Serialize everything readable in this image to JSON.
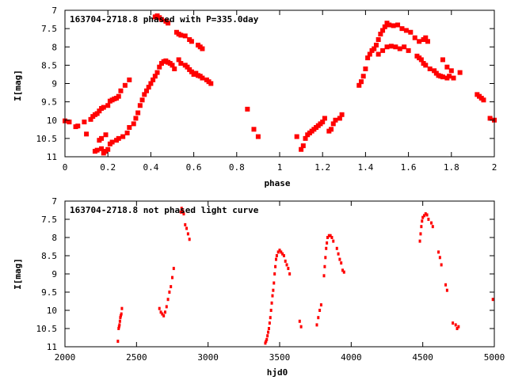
{
  "chart_data": [
    {
      "type": "scatter",
      "title": "163704-2718.8 phased with P=335.0day",
      "xlabel": "phase",
      "ylabel": "I[mag]",
      "xlim": [
        0,
        2
      ],
      "ylim": [
        11,
        7
      ],
      "y_inverted": true,
      "xticks": [
        "0",
        "0.2",
        "0.4",
        "0.6",
        "0.8",
        "1",
        "1.2",
        "1.4",
        "1.6",
        "1.8",
        "2"
      ],
      "yticks": [
        "7",
        "7.5",
        "8",
        "8.5",
        "9",
        "9.5",
        "10",
        "10.5",
        "11"
      ],
      "grid": false,
      "marker_color": "#ff0000",
      "marker": "filled-square",
      "points": [
        [
          0.0,
          10.02
        ],
        [
          0.02,
          10.05
        ],
        [
          0.05,
          10.18
        ],
        [
          0.06,
          10.16
        ],
        [
          0.09,
          10.05
        ],
        [
          0.1,
          10.38
        ],
        [
          0.12,
          9.98
        ],
        [
          0.13,
          9.9
        ],
        [
          0.14,
          9.85
        ],
        [
          0.15,
          9.82
        ],
        [
          0.16,
          9.75
        ],
        [
          0.17,
          9.68
        ],
        [
          0.18,
          9.65
        ],
        [
          0.2,
          9.6
        ],
        [
          0.21,
          9.48
        ],
        [
          0.22,
          9.45
        ],
        [
          0.23,
          9.42
        ],
        [
          0.24,
          9.4
        ],
        [
          0.25,
          9.35
        ],
        [
          0.26,
          9.2
        ],
        [
          0.28,
          9.05
        ],
        [
          0.3,
          8.9
        ],
        [
          0.14,
          10.85
        ],
        [
          0.15,
          10.82
        ],
        [
          0.17,
          10.78
        ],
        [
          0.18,
          10.9
        ],
        [
          0.19,
          10.85
        ],
        [
          0.2,
          10.8
        ],
        [
          0.16,
          10.55
        ],
        [
          0.17,
          10.5
        ],
        [
          0.19,
          10.4
        ],
        [
          0.21,
          10.65
        ],
        [
          0.22,
          10.6
        ],
        [
          0.24,
          10.55
        ],
        [
          0.25,
          10.5
        ],
        [
          0.27,
          10.45
        ],
        [
          0.29,
          10.35
        ],
        [
          0.3,
          10.2
        ],
        [
          0.32,
          10.1
        ],
        [
          0.33,
          9.95
        ],
        [
          0.34,
          9.8
        ],
        [
          0.35,
          9.6
        ],
        [
          0.36,
          9.45
        ],
        [
          0.37,
          9.3
        ],
        [
          0.38,
          9.2
        ],
        [
          0.39,
          9.1
        ],
        [
          0.4,
          9.0
        ],
        [
          0.41,
          8.9
        ],
        [
          0.42,
          8.8
        ],
        [
          0.43,
          8.7
        ],
        [
          0.44,
          8.55
        ],
        [
          0.45,
          8.45
        ],
        [
          0.46,
          8.4
        ],
        [
          0.47,
          8.38
        ],
        [
          0.48,
          8.42
        ],
        [
          0.49,
          8.45
        ],
        [
          0.5,
          8.5
        ],
        [
          0.51,
          8.6
        ],
        [
          0.53,
          8.35
        ],
        [
          0.54,
          8.45
        ],
        [
          0.56,
          8.5
        ],
        [
          0.57,
          8.55
        ],
        [
          0.58,
          8.62
        ],
        [
          0.59,
          8.68
        ],
        [
          0.6,
          8.75
        ],
        [
          0.61,
          8.72
        ],
        [
          0.62,
          8.78
        ],
        [
          0.63,
          8.8
        ],
        [
          0.64,
          8.85
        ],
        [
          0.66,
          8.9
        ],
        [
          0.67,
          8.95
        ],
        [
          0.68,
          9.0
        ],
        [
          0.42,
          7.18
        ],
        [
          0.43,
          7.15
        ],
        [
          0.44,
          7.2
        ],
        [
          0.45,
          7.25
        ],
        [
          0.47,
          7.3
        ],
        [
          0.48,
          7.35
        ],
        [
          0.52,
          7.6
        ],
        [
          0.53,
          7.65
        ],
        [
          0.54,
          7.68
        ],
        [
          0.56,
          7.7
        ],
        [
          0.58,
          7.8
        ],
        [
          0.59,
          7.85
        ],
        [
          0.62,
          7.95
        ],
        [
          0.63,
          8.0
        ],
        [
          0.64,
          8.05
        ],
        [
          0.85,
          9.7
        ],
        [
          0.88,
          10.25
        ],
        [
          0.9,
          10.45
        ],
        [
          1.08,
          10.45
        ],
        [
          1.1,
          10.8
        ],
        [
          1.11,
          10.7
        ],
        [
          1.12,
          10.5
        ],
        [
          1.13,
          10.4
        ],
        [
          1.14,
          10.35
        ],
        [
          1.15,
          10.3
        ],
        [
          1.16,
          10.25
        ],
        [
          1.17,
          10.2
        ],
        [
          1.18,
          10.15
        ],
        [
          1.19,
          10.1
        ],
        [
          1.2,
          10.05
        ],
        [
          1.21,
          9.95
        ],
        [
          1.23,
          10.3
        ],
        [
          1.24,
          10.25
        ],
        [
          1.25,
          10.1
        ],
        [
          1.26,
          10.0
        ],
        [
          1.28,
          9.95
        ],
        [
          1.29,
          9.85
        ],
        [
          1.37,
          9.05
        ],
        [
          1.38,
          8.95
        ],
        [
          1.39,
          8.8
        ],
        [
          1.4,
          8.6
        ],
        [
          1.41,
          8.3
        ],
        [
          1.42,
          8.2
        ],
        [
          1.43,
          8.1
        ],
        [
          1.44,
          8.05
        ],
        [
          1.45,
          7.95
        ],
        [
          1.46,
          7.8
        ],
        [
          1.47,
          7.65
        ],
        [
          1.48,
          7.55
        ],
        [
          1.49,
          7.45
        ],
        [
          1.5,
          7.35
        ],
        [
          1.51,
          7.4
        ],
        [
          1.53,
          7.42
        ],
        [
          1.55,
          7.4
        ],
        [
          1.57,
          7.5
        ],
        [
          1.59,
          7.55
        ],
        [
          1.61,
          7.6
        ],
        [
          1.63,
          7.75
        ],
        [
          1.65,
          7.85
        ],
        [
          1.67,
          7.8
        ],
        [
          1.68,
          7.75
        ],
        [
          1.69,
          7.85
        ],
        [
          1.46,
          8.2
        ],
        [
          1.48,
          8.1
        ],
        [
          1.5,
          8.0
        ],
        [
          1.52,
          7.98
        ],
        [
          1.54,
          8.0
        ],
        [
          1.56,
          8.05
        ],
        [
          1.58,
          8.0
        ],
        [
          1.6,
          8.1
        ],
        [
          1.64,
          8.25
        ],
        [
          1.65,
          8.3
        ],
        [
          1.66,
          8.35
        ],
        [
          1.67,
          8.45
        ],
        [
          1.68,
          8.5
        ],
        [
          1.7,
          8.6
        ],
        [
          1.72,
          8.65
        ],
        [
          1.73,
          8.72
        ],
        [
          1.74,
          8.78
        ],
        [
          1.75,
          8.8
        ],
        [
          1.76,
          8.82
        ],
        [
          1.78,
          8.85
        ],
        [
          1.79,
          8.8
        ],
        [
          1.8,
          8.65
        ],
        [
          1.81,
          8.85
        ],
        [
          1.76,
          8.35
        ],
        [
          1.78,
          8.55
        ],
        [
          1.84,
          8.7
        ],
        [
          1.92,
          9.3
        ],
        [
          1.93,
          9.35
        ],
        [
          1.94,
          9.4
        ],
        [
          1.95,
          9.45
        ],
        [
          1.98,
          9.95
        ],
        [
          2.0,
          10.0
        ]
      ]
    },
    {
      "type": "scatter",
      "title": "163704-2718.8 not phased light curve",
      "xlabel": "hjd0",
      "ylabel": "I[mag]",
      "xlim": [
        2000,
        5000
      ],
      "ylim": [
        11,
        7
      ],
      "y_inverted": true,
      "xticks": [
        "2000",
        "2500",
        "3000",
        "3500",
        "4000",
        "4500",
        "5000"
      ],
      "yticks": [
        "7",
        "7.5",
        "8",
        "8.5",
        "9",
        "9.5",
        "10",
        "10.5",
        "11"
      ],
      "grid": false,
      "marker_color": "#ff0000",
      "marker": "dot",
      "points": [
        [
          2370,
          10.85
        ],
        [
          2375,
          10.5
        ],
        [
          2378,
          10.45
        ],
        [
          2381,
          10.4
        ],
        [
          2384,
          10.3
        ],
        [
          2387,
          10.2
        ],
        [
          2390,
          10.15
        ],
        [
          2394,
          10.1
        ],
        [
          2398,
          9.95
        ],
        [
          2660,
          9.95
        ],
        [
          2670,
          10.05
        ],
        [
          2680,
          10.1
        ],
        [
          2690,
          10.15
        ],
        [
          2700,
          10.05
        ],
        [
          2710,
          9.9
        ],
        [
          2720,
          9.7
        ],
        [
          2730,
          9.5
        ],
        [
          2740,
          9.35
        ],
        [
          2750,
          9.1
        ],
        [
          2760,
          8.85
        ],
        [
          2810,
          7.3
        ],
        [
          2815,
          7.2
        ],
        [
          2820,
          7.25
        ],
        [
          2825,
          7.3
        ],
        [
          2830,
          7.35
        ],
        [
          2840,
          7.65
        ],
        [
          2850,
          7.75
        ],
        [
          2860,
          7.9
        ],
        [
          2870,
          8.05
        ],
        [
          3400,
          10.9
        ],
        [
          3405,
          10.85
        ],
        [
          3410,
          10.8
        ],
        [
          3415,
          10.7
        ],
        [
          3420,
          10.6
        ],
        [
          3425,
          10.5
        ],
        [
          3430,
          10.35
        ],
        [
          3435,
          10.2
        ],
        [
          3440,
          10.0
        ],
        [
          3445,
          9.8
        ],
        [
          3450,
          9.6
        ],
        [
          3455,
          9.45
        ],
        [
          3460,
          9.25
        ],
        [
          3465,
          9.0
        ],
        [
          3470,
          8.8
        ],
        [
          3475,
          8.6
        ],
        [
          3480,
          8.5
        ],
        [
          3490,
          8.4
        ],
        [
          3500,
          8.35
        ],
        [
          3510,
          8.4
        ],
        [
          3520,
          8.45
        ],
        [
          3530,
          8.5
        ],
        [
          3540,
          8.65
        ],
        [
          3550,
          8.75
        ],
        [
          3560,
          8.85
        ],
        [
          3570,
          9.0
        ],
        [
          3640,
          10.3
        ],
        [
          3650,
          10.45
        ],
        [
          3760,
          10.4
        ],
        [
          3770,
          10.2
        ],
        [
          3780,
          10.0
        ],
        [
          3790,
          9.85
        ],
        [
          3810,
          9.05
        ],
        [
          3815,
          8.8
        ],
        [
          3820,
          8.55
        ],
        [
          3825,
          8.3
        ],
        [
          3830,
          8.15
        ],
        [
          3835,
          8.0
        ],
        [
          3845,
          7.95
        ],
        [
          3855,
          7.95
        ],
        [
          3865,
          8.0
        ],
        [
          3875,
          8.1
        ],
        [
          3900,
          8.3
        ],
        [
          3910,
          8.45
        ],
        [
          3920,
          8.6
        ],
        [
          3930,
          8.7
        ],
        [
          3940,
          8.9
        ],
        [
          3950,
          8.95
        ],
        [
          4480,
          8.1
        ],
        [
          4485,
          7.9
        ],
        [
          4490,
          7.7
        ],
        [
          4495,
          7.55
        ],
        [
          4500,
          7.45
        ],
        [
          4510,
          7.4
        ],
        [
          4520,
          7.35
        ],
        [
          4530,
          7.38
        ],
        [
          4540,
          7.5
        ],
        [
          4560,
          7.6
        ],
        [
          4570,
          7.7
        ],
        [
          4610,
          8.4
        ],
        [
          4620,
          8.55
        ],
        [
          4630,
          8.75
        ],
        [
          4660,
          9.3
        ],
        [
          4670,
          9.45
        ],
        [
          4710,
          10.35
        ],
        [
          4730,
          10.4
        ],
        [
          4740,
          10.5
        ],
        [
          4750,
          10.45
        ],
        [
          4990,
          9.7
        ]
      ]
    }
  ]
}
